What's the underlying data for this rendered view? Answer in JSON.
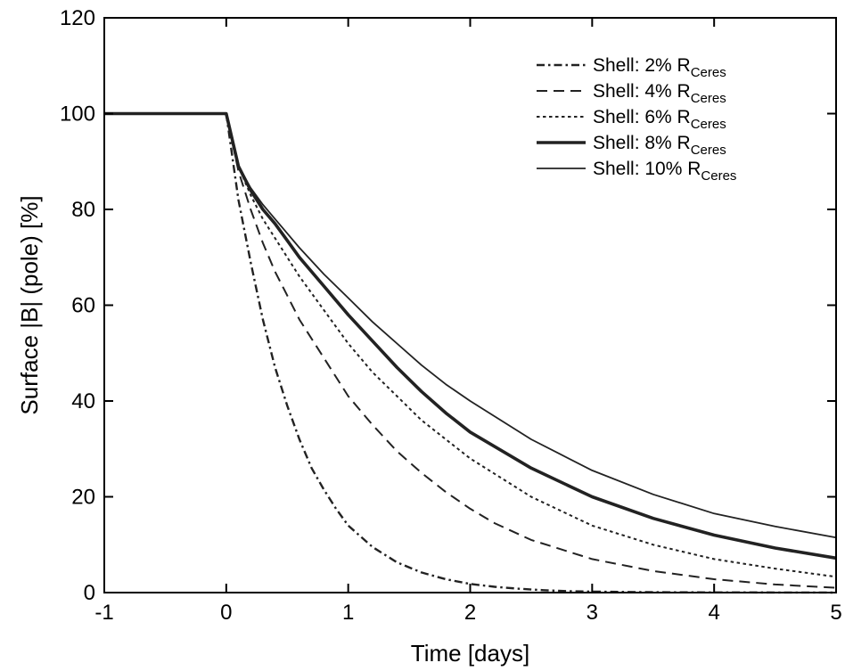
{
  "chart_data": {
    "type": "line",
    "title": "",
    "xlabel": "Time [days]",
    "ylabel": "Surface |B| (pole) [%]",
    "xlim": [
      -1,
      5
    ],
    "ylim": [
      0,
      120
    ],
    "xticks": [
      -1,
      0,
      1,
      2,
      3,
      4,
      5
    ],
    "yticks": [
      0,
      20,
      40,
      60,
      80,
      100,
      120
    ],
    "grid": false,
    "legend_position": "top-right",
    "series": [
      {
        "name": "Shell: 2% R",
        "name_subscript": "Ceres",
        "line_style": "dash-dot",
        "line_weight": "medium",
        "color": "#222222",
        "x": [
          -1,
          0,
          0.1,
          0.2,
          0.3,
          0.4,
          0.5,
          0.6,
          0.7,
          0.8,
          0.9,
          1.0,
          1.2,
          1.4,
          1.6,
          1.8,
          2.0,
          2.2,
          2.4,
          2.6,
          2.8,
          3.0,
          3.5,
          4.0,
          5.0
        ],
        "y": [
          100,
          100,
          82,
          69,
          57,
          47,
          39,
          32,
          26,
          21.5,
          17.5,
          14,
          9.5,
          6.3,
          4.2,
          2.8,
          1.8,
          1.2,
          0.8,
          0.5,
          0.3,
          0.2,
          0.08,
          0.03,
          0
        ]
      },
      {
        "name": "Shell: 4% R",
        "name_subscript": "Ceres",
        "line_style": "long-dash",
        "line_weight": "medium",
        "color": "#222222",
        "x": [
          -1,
          0,
          0.1,
          0.2,
          0.3,
          0.4,
          0.5,
          0.6,
          0.8,
          1.0,
          1.2,
          1.4,
          1.6,
          1.8,
          2.0,
          2.2,
          2.5,
          3.0,
          3.5,
          4.0,
          4.5,
          5.0
        ],
        "y": [
          100,
          100,
          88,
          80,
          73,
          67,
          62,
          57,
          49,
          41,
          35,
          29.5,
          25,
          21,
          17.5,
          14.5,
          11,
          7,
          4.5,
          2.8,
          1.7,
          1.0
        ]
      },
      {
        "name": "Shell: 6% R",
        "name_subscript": "Ceres",
        "line_style": "short-dash",
        "line_weight": "thin",
        "color": "#222222",
        "x": [
          -1,
          0,
          0.1,
          0.2,
          0.3,
          0.4,
          0.5,
          0.6,
          0.8,
          1.0,
          1.2,
          1.4,
          1.6,
          1.8,
          2.0,
          2.5,
          3.0,
          3.5,
          4.0,
          4.5,
          5.0
        ],
        "y": [
          100,
          100,
          89,
          83,
          78,
          74,
          70,
          66,
          59,
          52,
          46,
          41,
          36,
          32,
          28,
          20,
          14,
          10,
          7,
          5,
          3.3
        ]
      },
      {
        "name": "Shell: 8% R",
        "name_subscript": "Ceres",
        "line_style": "solid",
        "line_weight": "thick",
        "color": "#222222",
        "x": [
          -1,
          0,
          0.1,
          0.2,
          0.3,
          0.4,
          0.5,
          0.6,
          0.8,
          1.0,
          1.2,
          1.4,
          1.6,
          1.8,
          2.0,
          2.5,
          3.0,
          3.5,
          4.0,
          4.5,
          5.0
        ],
        "y": [
          100,
          100,
          89,
          84,
          80,
          77,
          73.5,
          70,
          64,
          58,
          52.5,
          47,
          42,
          37.5,
          33.5,
          26,
          20,
          15.5,
          12,
          9.3,
          7.2
        ]
      },
      {
        "name": "Shell: 10% R",
        "name_subscript": "Ceres",
        "line_style": "solid",
        "line_weight": "thin",
        "color": "#222222",
        "x": [
          -1,
          0,
          0.1,
          0.2,
          0.3,
          0.4,
          0.5,
          0.6,
          0.8,
          1.0,
          1.2,
          1.4,
          1.6,
          1.8,
          2.0,
          2.5,
          3.0,
          3.5,
          4.0,
          4.5,
          5.0
        ],
        "y": [
          100,
          100,
          89,
          84.5,
          81,
          78,
          75,
          72,
          66.5,
          61.5,
          56.5,
          52,
          47.5,
          43.5,
          40,
          32,
          25.5,
          20.5,
          16.5,
          13.8,
          11.5
        ]
      }
    ]
  }
}
